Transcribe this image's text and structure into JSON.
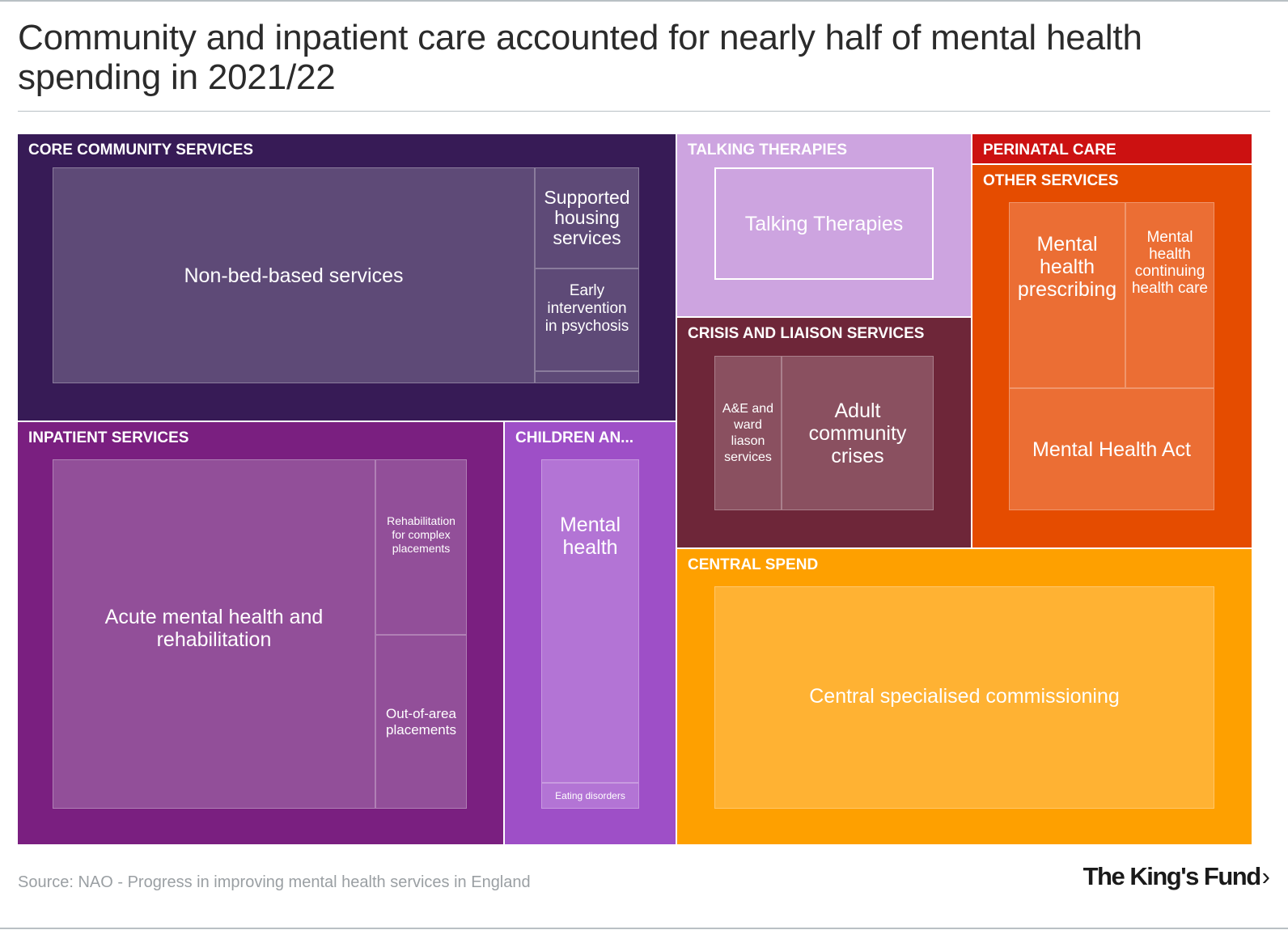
{
  "title": "Community and inpatient care accounted for nearly half of mental health spending in 2021/22",
  "source": "Source: NAO - Progress in improving mental health services in England",
  "logo": {
    "text": "The King's Fund",
    "chevron": "›"
  },
  "chart_data": {
    "type": "treemap",
    "title": "Community and inpatient care accounted for nearly half of mental health spending in 2021/22",
    "groups": [
      {
        "id": "core",
        "name": "CORE COMMUNITY SERVICES",
        "color": "#371b56",
        "leaf_color": "#5e4a77",
        "children": [
          {
            "name": "Non-bed-based services"
          },
          {
            "name": "Supported housing services"
          },
          {
            "name": "Early intervention in psychosis"
          },
          {
            "name": ""
          }
        ]
      },
      {
        "id": "talking",
        "name": "TALKING THERAPIES",
        "color": "#cda4e0",
        "leaf_color": "#cda4e0",
        "children": [
          {
            "name": "Talking Therapies"
          }
        ]
      },
      {
        "id": "perinatal",
        "name": "PERINATAL CARE",
        "color": "#cc1111",
        "children": []
      },
      {
        "id": "other",
        "name": "OTHER SERVICES",
        "color": "#e54c00",
        "leaf_color": "#eb6e34",
        "children": [
          {
            "name": "Mental health prescribing"
          },
          {
            "name": "Mental health continuing health care"
          },
          {
            "name": "Mental Health Act"
          }
        ]
      },
      {
        "id": "crisis",
        "name": "CRISIS AND LIAISON SERVICES",
        "color": "#6e2639",
        "leaf_color": "#8a5060",
        "children": [
          {
            "name": "A&E and ward liason services"
          },
          {
            "name": "Adult community crises"
          }
        ]
      },
      {
        "id": "inpatient",
        "name": "INPATIENT SERVICES",
        "color": "#7a1f80",
        "leaf_color": "#924f99",
        "children": [
          {
            "name": "Acute mental health and rehabilitation"
          },
          {
            "name": "Rehabilitation for complex placements"
          },
          {
            "name": "Out-of-area placements"
          }
        ]
      },
      {
        "id": "children",
        "name": "CHILDREN AN...",
        "color": "#9e4fc7",
        "leaf_color": "#b374d5",
        "children": [
          {
            "name": "Mental health"
          },
          {
            "name": "Eating disorders"
          }
        ]
      },
      {
        "id": "central",
        "name": "CENTRAL SPEND",
        "color": "#fea000",
        "leaf_color": "#ffb233",
        "children": [
          {
            "name": "Central specialised commissioning"
          }
        ]
      }
    ]
  }
}
